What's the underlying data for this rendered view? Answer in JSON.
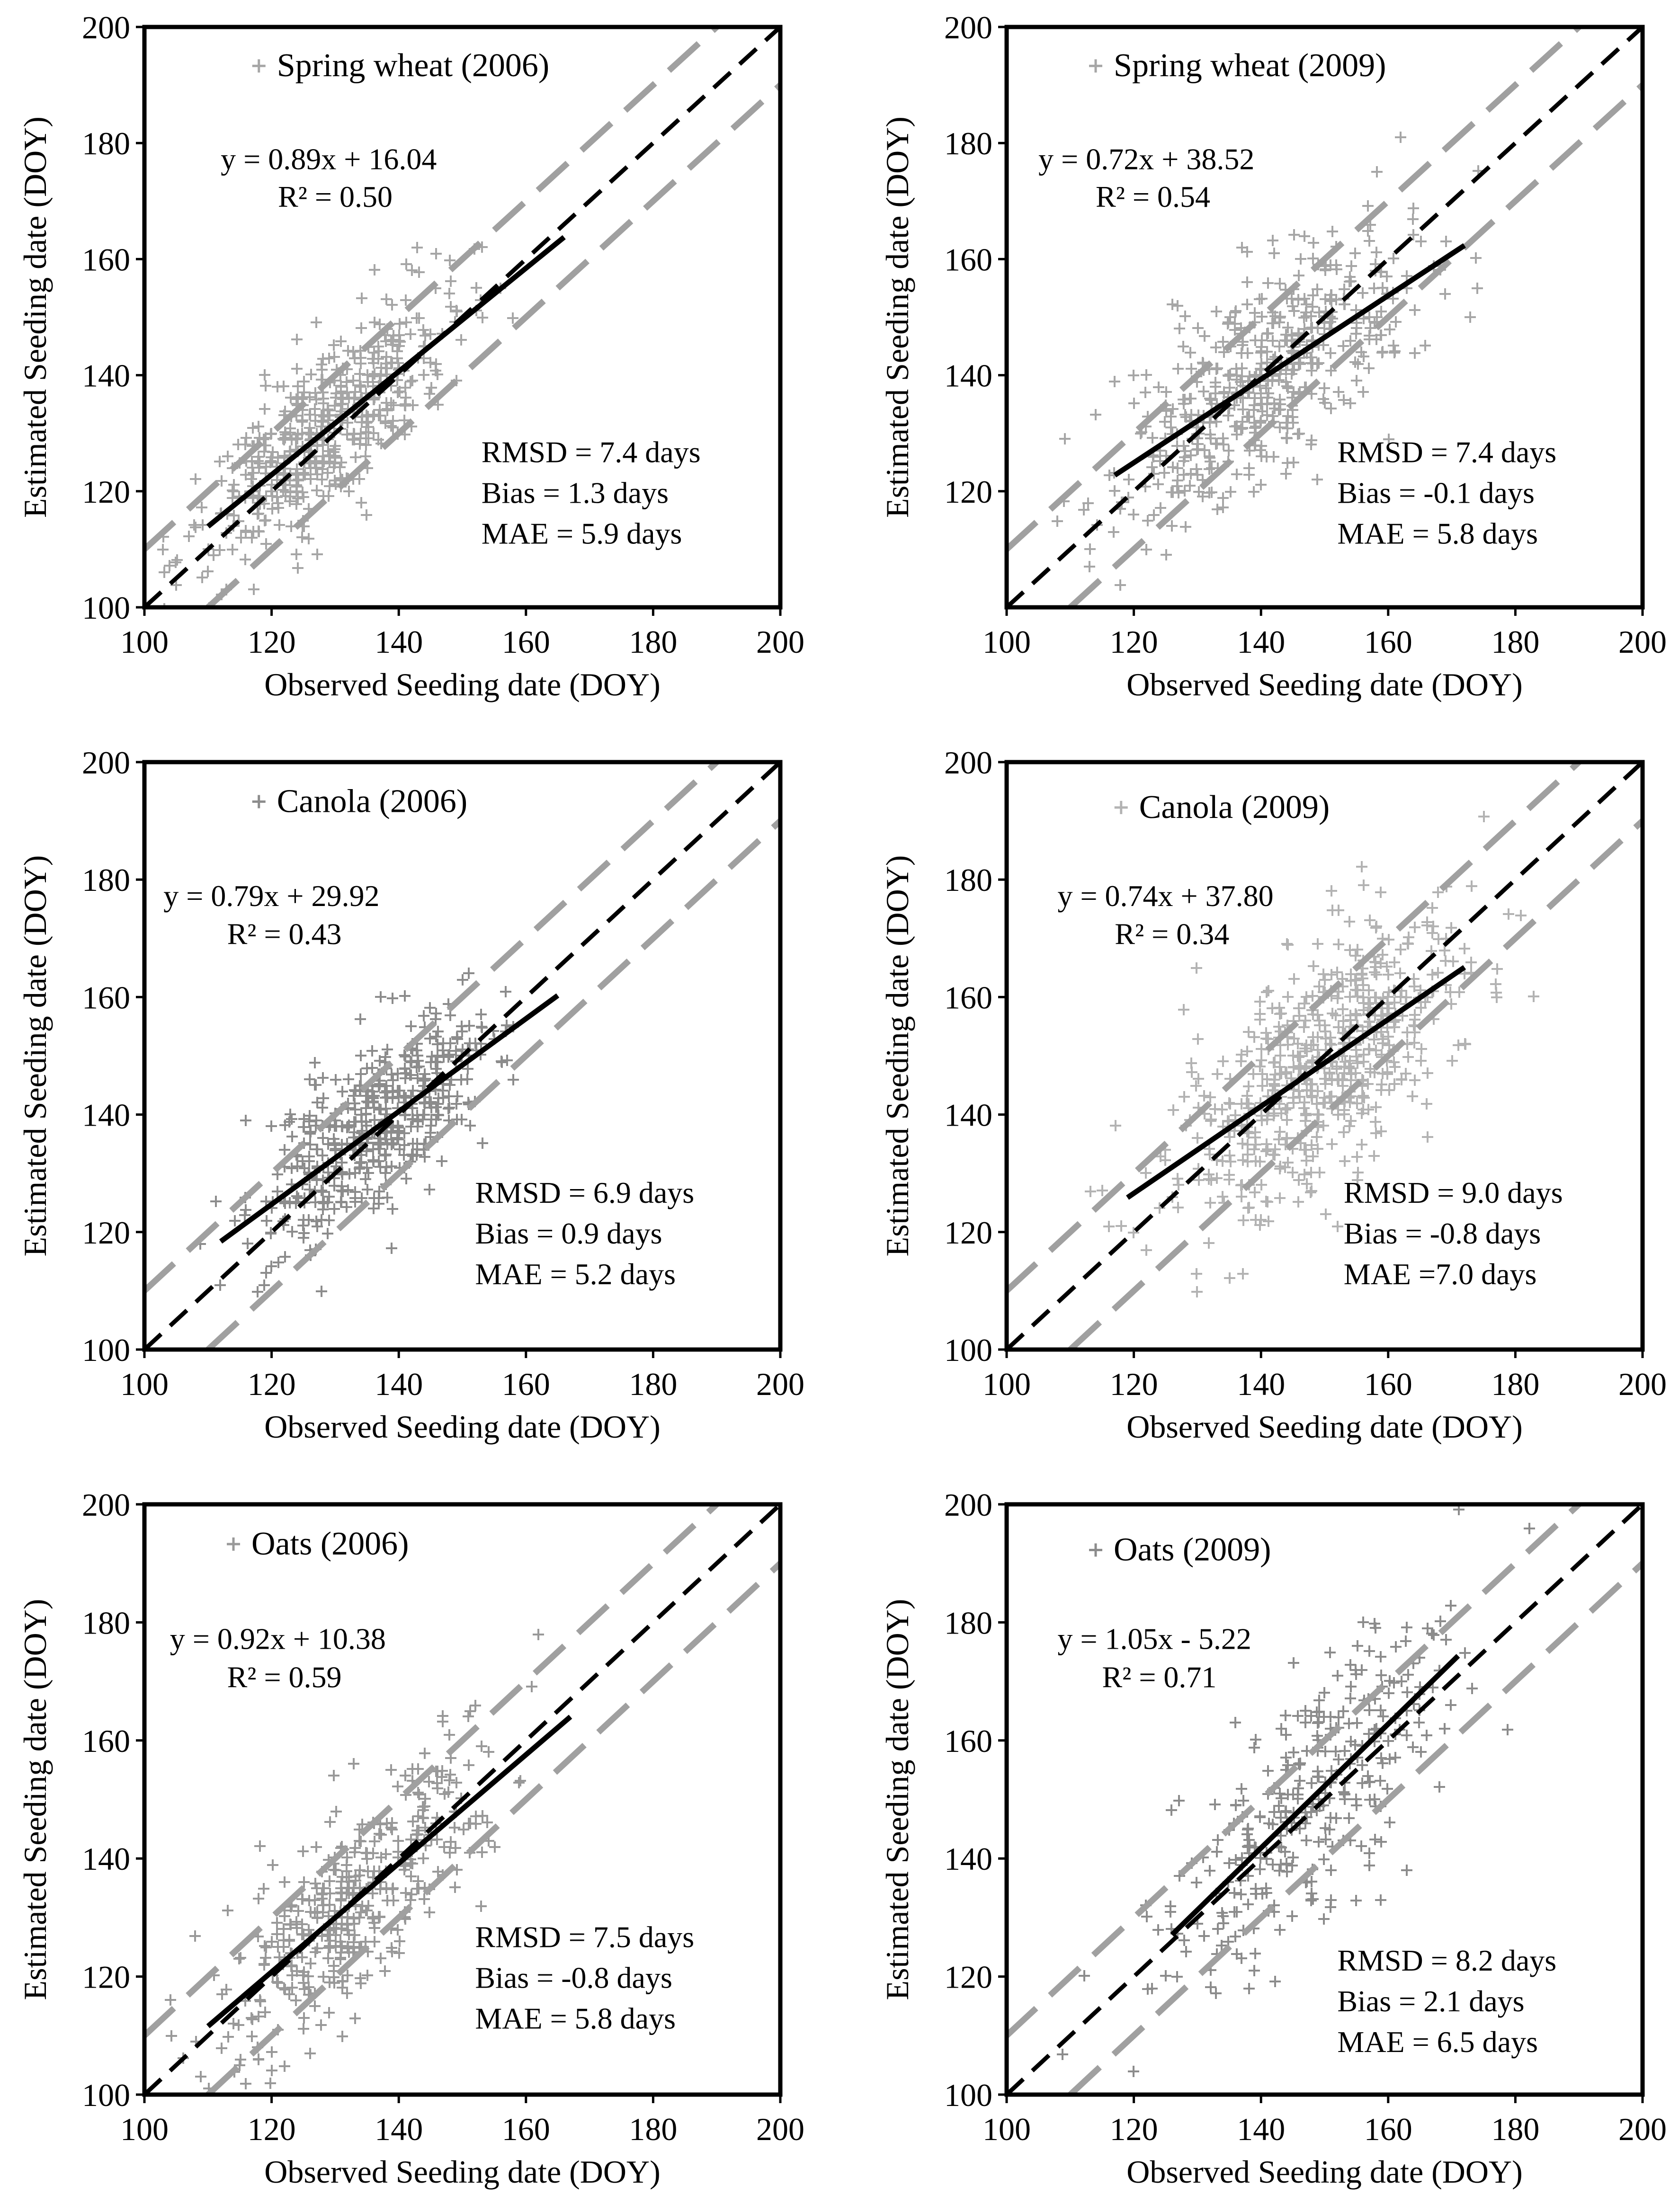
{
  "chart_data": [
    {
      "type": "scatter",
      "series": [
        {
          "name": "Spring wheat (2006)",
          "color": "#a6a6a6",
          "marker": "plus"
        }
      ],
      "xlabel": "Observed Seeding date (DOY)",
      "ylabel": "Estimated  Seeding date (DOY)",
      "xlim": [
        100,
        200
      ],
      "ylim": [
        100,
        200
      ],
      "xticks": [
        "100",
        "120",
        "140",
        "160",
        "180",
        "200"
      ],
      "yticks": [
        "100",
        "120",
        "140",
        "160",
        "180",
        "200"
      ],
      "regression": {
        "equation": "y = 0.89x + 16.04",
        "r2": "R² = 0.50",
        "slope": 0.89,
        "intercept": 16.04,
        "x_range": [
          110,
          166
        ]
      },
      "stats": [
        "RMSD = 7.4 days",
        "Bias =  1.3 days",
        "MAE = 5.9 days"
      ],
      "one_to_one_line": true,
      "band_offset_days": 10,
      "cloud": {
        "center": [
          128,
          132
        ],
        "spread": [
          10,
          8
        ],
        "n": 520
      },
      "grid": false,
      "legend_position": "top-center"
    },
    {
      "type": "scatter",
      "series": [
        {
          "name": "Spring wheat (2009)",
          "color": "#a6a6a6",
          "marker": "plus"
        }
      ],
      "xlabel": "Observed Seeding date (DOY)",
      "ylabel": "Estimated Seeding date (DOY)",
      "xlim": [
        100,
        200
      ],
      "ylim": [
        100,
        200
      ],
      "xticks": [
        "100",
        "120",
        "140",
        "160",
        "180",
        "200"
      ],
      "yticks": [
        "120",
        "140",
        "160",
        "180",
        "200"
      ],
      "regression": {
        "equation": "y = 0.72x + 38.52",
        "r2": "R² = 0.54",
        "slope": 0.72,
        "intercept": 38.52,
        "x_range": [
          117,
          172
        ]
      },
      "stats": [
        "RMSD = 7.4 days",
        "Bias =  -0.1 days",
        "MAE = 5.8 days"
      ],
      "one_to_one_line": true,
      "band_offset_days": 10,
      "cloud": {
        "center": [
          140,
          142
        ],
        "spread": [
          12,
          11
        ],
        "n": 520
      },
      "grid": false,
      "legend_position": "top-center"
    },
    {
      "type": "scatter",
      "series": [
        {
          "name": "Canola (2006)",
          "color": "#8c8c8c",
          "marker": "plus"
        }
      ],
      "xlabel": "Observed Seeding date (DOY)",
      "ylabel": "Estimated  Seeding date (DOY)",
      "xlim": [
        100,
        200
      ],
      "ylim": [
        100,
        200
      ],
      "xticks": [
        "100",
        "120",
        "140",
        "160",
        "180",
        "200"
      ],
      "yticks": [
        "100",
        "120",
        "140",
        "160",
        "180",
        "200"
      ],
      "regression": {
        "equation": "y = 0.79x + 29.92",
        "r2": "R² = 0.43",
        "slope": 0.79,
        "intercept": 29.92,
        "x_range": [
          112,
          165
        ]
      },
      "stats": [
        "RMSD = 6.9 days",
        "Bias =  0.9 days",
        "MAE = 5.2 days"
      ],
      "one_to_one_line": true,
      "band_offset_days": 10,
      "cloud": {
        "center": [
          136,
          137
        ],
        "spread": [
          9,
          9
        ],
        "n": 500
      },
      "grid": false,
      "legend_position": "top-center"
    },
    {
      "type": "scatter",
      "series": [
        {
          "name": "Canola (2009)",
          "color": "#b3b3b3",
          "marker": "plus"
        }
      ],
      "xlabel": "Observed Seeding date (DOY)",
      "ylabel": "Estimated Seeding date (DOY)",
      "xlim": [
        100,
        200
      ],
      "ylim": [
        100,
        200
      ],
      "xticks": [
        "100",
        "120",
        "140",
        "160",
        "180",
        "200"
      ],
      "yticks": [
        "100",
        "120",
        "140",
        "160",
        "180",
        "200"
      ],
      "regression": {
        "equation": "y = 0.74x + 37.80",
        "r2": "R² = 0.34",
        "slope": 0.74,
        "intercept": 37.8,
        "x_range": [
          119,
          172
        ]
      },
      "stats": [
        "RMSD = 9.0 days",
        "Bias = -0.8 days",
        "MAE =7.0 days"
      ],
      "one_to_one_line": true,
      "band_offset_days": 10,
      "cloud": {
        "center": [
          150,
          148
        ],
        "spread": [
          11,
          12
        ],
        "n": 620
      },
      "grid": false,
      "legend_position": "top-center"
    },
    {
      "type": "scatter",
      "series": [
        {
          "name": "Oats (2006)",
          "color": "#999999",
          "marker": "plus"
        }
      ],
      "xlabel": "Observed Seeding date (DOY)",
      "ylabel": "Estimated  Seeding date (DOY)",
      "xlim": [
        100,
        200
      ],
      "ylim": [
        100,
        200
      ],
      "xticks": [
        "100",
        "120",
        "140",
        "160",
        "180",
        "200"
      ],
      "yticks": [
        "100",
        "120",
        "140",
        "160",
        "180",
        "200"
      ],
      "regression": {
        "equation": "y = 0.92x + 10.38",
        "r2": "R² = 0.59",
        "slope": 0.92,
        "intercept": 10.38,
        "x_range": [
          110,
          167
        ]
      },
      "stats": [
        "RMSD = 7.5 days",
        "Bias =  -0.8 days",
        "MAE = 5.8 days"
      ],
      "one_to_one_line": true,
      "band_offset_days": 10,
      "cloud": {
        "center": [
          132,
          133
        ],
        "spread": [
          10,
          10
        ],
        "n": 420
      },
      "grid": false,
      "legend_position": "top-center"
    },
    {
      "type": "scatter",
      "series": [
        {
          "name": "Oats (2009)",
          "color": "#8c8c8c",
          "marker": "plus"
        }
      ],
      "xlabel": "Observed Seeding date (DOY)",
      "ylabel": "Estimated  Seeding date (DOY)",
      "xlim": [
        100,
        200
      ],
      "ylim": [
        100,
        200
      ],
      "xticks": [
        "100",
        "120",
        "140",
        "160",
        "180",
        "200"
      ],
      "yticks": [
        "100",
        "120",
        "140",
        "160",
        "180",
        "200"
      ],
      "regression": {
        "equation": "y = 1.05x - 5.22",
        "r2": "R² = 0.71",
        "slope": 1.05,
        "intercept": -5.22,
        "x_range": [
          126,
          171
        ]
      },
      "stats": [
        "RMSD = 8.2 days",
        "Bias =  2.1 days",
        "MAE = 6.5 days"
      ],
      "one_to_one_line": true,
      "band_offset_days": 10,
      "cloud": {
        "center": [
          148,
          150
        ],
        "spread": [
          11,
          13
        ],
        "n": 330
      },
      "grid": false,
      "legend_position": "top-center"
    }
  ]
}
